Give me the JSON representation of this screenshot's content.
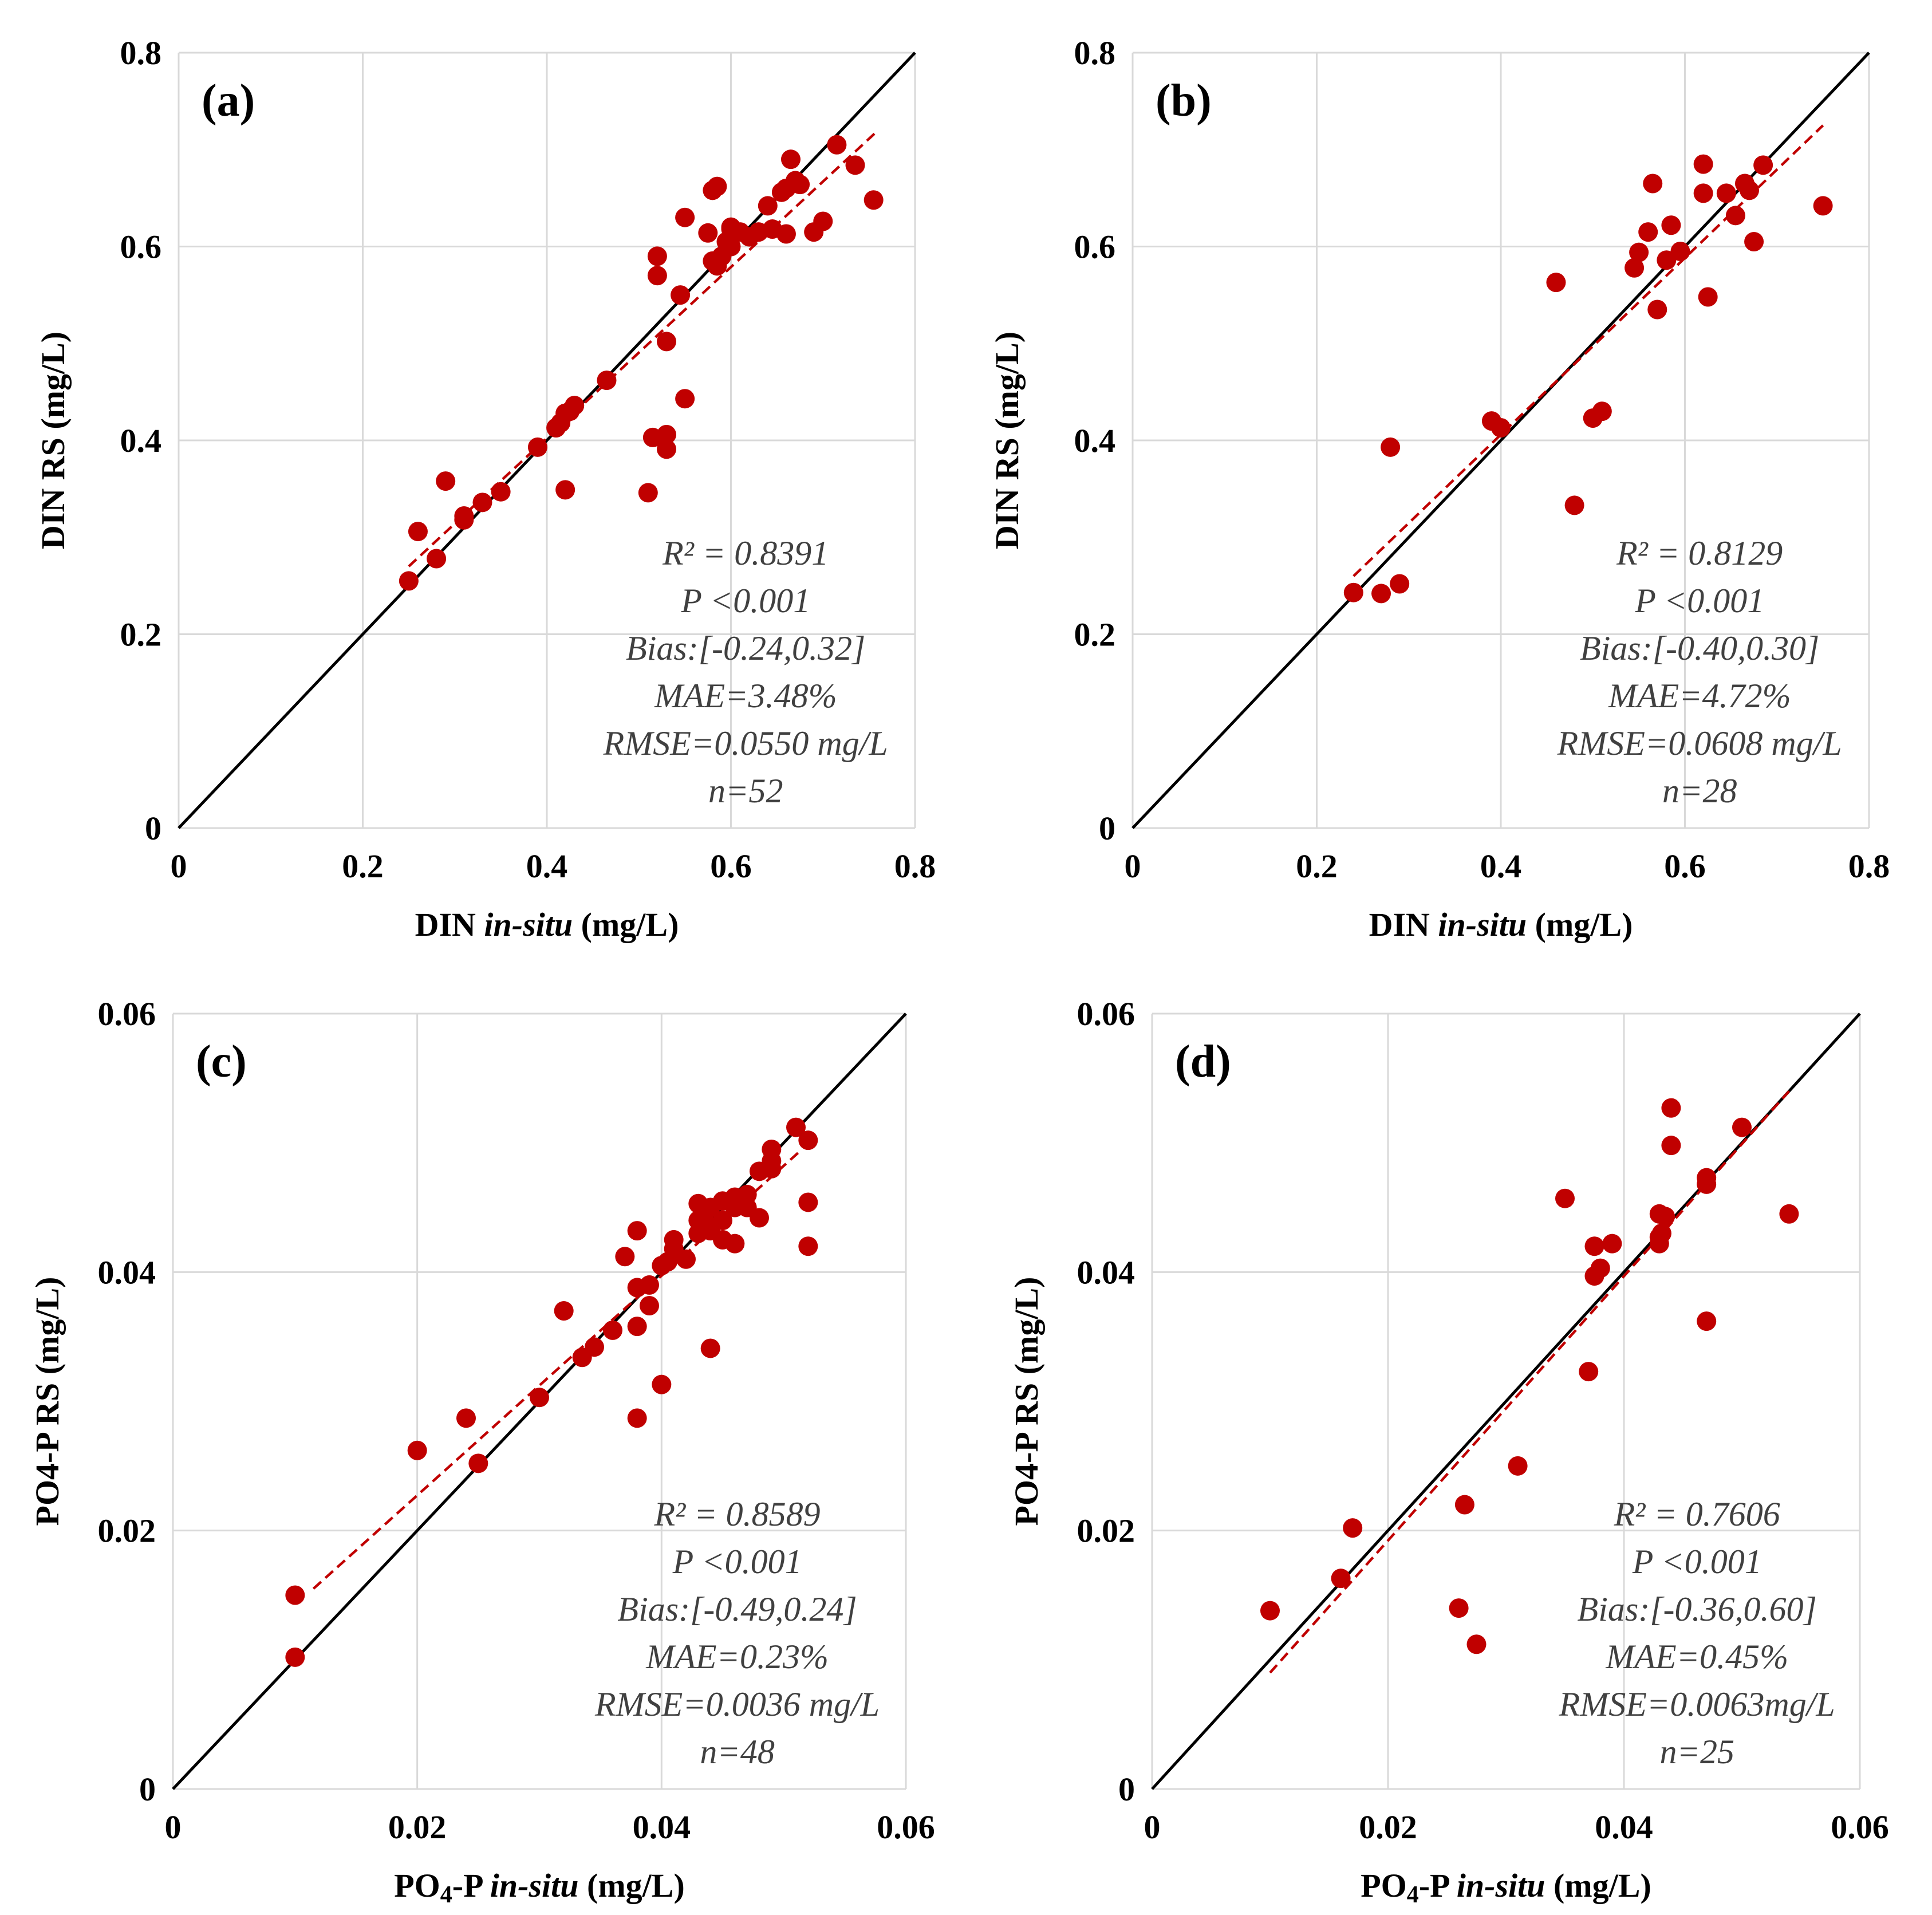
{
  "chart_data": [
    {
      "type": "scatter",
      "panel_label": "(a)",
      "xlabel": {
        "pre": "DIN ",
        "italic": "in-situ",
        "post": " (mg/L)"
      },
      "ylabel": "DIN RS (mg/L)",
      "xlim": [
        0,
        0.8
      ],
      "ylim": [
        0,
        0.8
      ],
      "xticks": [
        0,
        0.2,
        0.4,
        0.6,
        0.8
      ],
      "yticks": [
        0,
        0.2,
        0.4,
        0.6,
        0.8
      ],
      "xtick_labels": [
        "0",
        "0.2",
        "0.4",
        "0.6",
        "0.8"
      ],
      "ytick_labels": [
        "0",
        "0.2",
        "0.4",
        "0.6",
        "0.8"
      ],
      "grid": true,
      "stats": [
        "R² = 0.8391",
        "P <0.001",
        "Bias:[-0.24,0.32]",
        "MAE=3.48%",
        "RMSE=0.0550 mg/L",
        "n=52"
      ],
      "trendline": {
        "x": [
          0.25,
          0.76
        ],
        "y": [
          0.27,
          0.72
        ]
      },
      "points": [
        [
          0.25,
          0.255
        ],
        [
          0.26,
          0.306
        ],
        [
          0.28,
          0.278
        ],
        [
          0.29,
          0.358
        ],
        [
          0.31,
          0.318
        ],
        [
          0.31,
          0.322
        ],
        [
          0.33,
          0.336
        ],
        [
          0.35,
          0.347
        ],
        [
          0.39,
          0.393
        ],
        [
          0.41,
          0.413
        ],
        [
          0.415,
          0.418
        ],
        [
          0.42,
          0.428
        ],
        [
          0.42,
          0.349
        ],
        [
          0.425,
          0.43
        ],
        [
          0.43,
          0.436
        ],
        [
          0.465,
          0.462
        ],
        [
          0.51,
          0.346
        ],
        [
          0.515,
          0.403
        ],
        [
          0.52,
          0.59
        ],
        [
          0.52,
          0.57
        ],
        [
          0.53,
          0.502
        ],
        [
          0.53,
          0.406
        ],
        [
          0.53,
          0.391
        ],
        [
          0.545,
          0.55
        ],
        [
          0.55,
          0.443
        ],
        [
          0.55,
          0.63
        ],
        [
          0.575,
          0.614
        ],
        [
          0.58,
          0.658
        ],
        [
          0.58,
          0.585
        ],
        [
          0.585,
          0.662
        ],
        [
          0.585,
          0.58
        ],
        [
          0.59,
          0.59
        ],
        [
          0.595,
          0.605
        ],
        [
          0.6,
          0.618
        ],
        [
          0.61,
          0.615
        ],
        [
          0.64,
          0.642
        ],
        [
          0.645,
          0.618
        ],
        [
          0.655,
          0.656
        ],
        [
          0.66,
          0.613
        ],
        [
          0.665,
          0.69
        ],
        [
          0.67,
          0.668
        ],
        [
          0.675,
          0.664
        ],
        [
          0.69,
          0.615
        ],
        [
          0.7,
          0.626
        ],
        [
          0.715,
          0.705
        ],
        [
          0.735,
          0.684
        ],
        [
          0.755,
          0.648
        ],
        [
          0.6,
          0.62
        ],
        [
          0.62,
          0.61
        ],
        [
          0.63,
          0.615
        ],
        [
          0.6,
          0.6
        ],
        [
          0.66,
          0.66
        ]
      ]
    },
    {
      "type": "scatter",
      "panel_label": "(b)",
      "xlabel": {
        "pre": "DIN ",
        "italic": "in-situ",
        "post": " (mg/L)"
      },
      "ylabel": "DIN RS (mg/L)",
      "xlim": [
        0,
        0.8
      ],
      "ylim": [
        0,
        0.8
      ],
      "xticks": [
        0,
        0.2,
        0.4,
        0.6,
        0.8
      ],
      "yticks": [
        0,
        0.2,
        0.4,
        0.6,
        0.8
      ],
      "xtick_labels": [
        "0",
        "0.2",
        "0.4",
        "0.6",
        "0.8"
      ],
      "ytick_labels": [
        "0",
        "0.2",
        "0.4",
        "0.6",
        "0.8"
      ],
      "grid": true,
      "stats": [
        "R² = 0.8129",
        "P <0.001",
        "Bias:[-0.40,0.30]",
        "MAE=4.72%",
        "RMSE=0.0608 mg/L",
        "n=28"
      ],
      "trendline": {
        "x": [
          0.24,
          0.75
        ],
        "y": [
          0.26,
          0.725
        ]
      },
      "points": [
        [
          0.24,
          0.243
        ],
        [
          0.27,
          0.242
        ],
        [
          0.28,
          0.393
        ],
        [
          0.29,
          0.252
        ],
        [
          0.39,
          0.42
        ],
        [
          0.4,
          0.413
        ],
        [
          0.46,
          0.563
        ],
        [
          0.48,
          0.333
        ],
        [
          0.5,
          0.423
        ],
        [
          0.51,
          0.43
        ],
        [
          0.545,
          0.578
        ],
        [
          0.55,
          0.594
        ],
        [
          0.56,
          0.615
        ],
        [
          0.565,
          0.665
        ],
        [
          0.57,
          0.535
        ],
        [
          0.58,
          0.586
        ],
        [
          0.585,
          0.622
        ],
        [
          0.595,
          0.595
        ],
        [
          0.62,
          0.685
        ],
        [
          0.62,
          0.655
        ],
        [
          0.625,
          0.548
        ],
        [
          0.645,
          0.655
        ],
        [
          0.655,
          0.632
        ],
        [
          0.665,
          0.665
        ],
        [
          0.67,
          0.658
        ],
        [
          0.675,
          0.605
        ],
        [
          0.685,
          0.684
        ],
        [
          0.75,
          0.642
        ]
      ]
    },
    {
      "type": "scatter",
      "panel_label": "(c)",
      "xlabel": {
        "pre": "PO",
        "sub": "4",
        "mid": "-P ",
        "italic": "in-situ",
        "post": " (mg/L)"
      },
      "ylabel": "PO4-P RS (mg/L)",
      "xlim": [
        0,
        0.06
      ],
      "ylim": [
        0,
        0.06
      ],
      "xticks": [
        0,
        0.02,
        0.04,
        0.06
      ],
      "yticks": [
        0,
        0.02,
        0.04,
        0.06
      ],
      "xtick_labels": [
        "0",
        "0.02",
        "0.04",
        "0.06"
      ],
      "ytick_labels": [
        "0",
        "0.02",
        "0.04",
        "0.06"
      ],
      "grid": true,
      "stats": [
        "R² = 0.8589",
        "P <0.001",
        "Bias:[-0.49,0.24]",
        "MAE=0.23%",
        "RMSE=0.0036 mg/L",
        "n=48"
      ],
      "trendline": {
        "x": [
          0.0115,
          0.0515
        ],
        "y": [
          0.0155,
          0.0495
        ]
      },
      "points": [
        [
          0.01,
          0.015
        ],
        [
          0.01,
          0.0102
        ],
        [
          0.02,
          0.0262
        ],
        [
          0.024,
          0.0287
        ],
        [
          0.025,
          0.0252
        ],
        [
          0.03,
          0.0303
        ],
        [
          0.032,
          0.037
        ],
        [
          0.0335,
          0.0334
        ],
        [
          0.0345,
          0.0342
        ],
        [
          0.037,
          0.0412
        ],
        [
          0.038,
          0.0432
        ],
        [
          0.038,
          0.0388
        ],
        [
          0.038,
          0.0358
        ],
        [
          0.038,
          0.0287
        ],
        [
          0.039,
          0.039
        ],
        [
          0.039,
          0.0374
        ],
        [
          0.04,
          0.0405
        ],
        [
          0.04,
          0.0313
        ],
        [
          0.041,
          0.0418
        ],
        [
          0.041,
          0.0425
        ],
        [
          0.044,
          0.0341
        ],
        [
          0.043,
          0.0453
        ],
        [
          0.043,
          0.043
        ],
        [
          0.044,
          0.0435
        ],
        [
          0.044,
          0.045
        ],
        [
          0.045,
          0.0425
        ],
        [
          0.045,
          0.0455
        ],
        [
          0.046,
          0.0422
        ],
        [
          0.046,
          0.0458
        ],
        [
          0.047,
          0.046
        ],
        [
          0.047,
          0.045
        ],
        [
          0.048,
          0.0442
        ],
        [
          0.048,
          0.0478
        ],
        [
          0.049,
          0.0495
        ],
        [
          0.049,
          0.0486
        ],
        [
          0.049,
          0.048
        ],
        [
          0.051,
          0.0512
        ],
        [
          0.052,
          0.0502
        ],
        [
          0.052,
          0.0454
        ],
        [
          0.052,
          0.042
        ],
        [
          0.043,
          0.044
        ],
        [
          0.044,
          0.0432
        ],
        [
          0.045,
          0.044
        ],
        [
          0.042,
          0.041
        ],
        [
          0.046,
          0.045
        ],
        [
          0.0435,
          0.0445
        ],
        [
          0.0405,
          0.0408
        ],
        [
          0.036,
          0.0355
        ]
      ]
    },
    {
      "type": "scatter",
      "panel_label": "(d)",
      "xlabel": {
        "pre": "PO",
        "sub": "4",
        "mid": "-P ",
        "italic": "in-situ",
        "post": " (mg/L)"
      },
      "ylabel": "PO4-P RS (mg/L)",
      "xlim": [
        0,
        0.06
      ],
      "ylim": [
        0,
        0.06
      ],
      "xticks": [
        0,
        0.02,
        0.04,
        0.06
      ],
      "yticks": [
        0,
        0.02,
        0.04,
        0.06
      ],
      "xtick_labels": [
        "0",
        "0.02",
        "0.04",
        "0.06"
      ],
      "ytick_labels": [
        "0",
        "0.02",
        "0.04",
        "0.06"
      ],
      "grid": true,
      "stats": [
        "R² = 0.7606",
        "P <0.001",
        "Bias:[-0.36,0.60]",
        "MAE=0.45%",
        "RMSE=0.0063mg/L",
        "n=25"
      ],
      "trendline": {
        "x": [
          0.01,
          0.054
        ],
        "y": [
          0.009,
          0.054
        ]
      },
      "points": [
        [
          0.01,
          0.0138
        ],
        [
          0.016,
          0.0163
        ],
        [
          0.017,
          0.0202
        ],
        [
          0.026,
          0.014
        ],
        [
          0.0265,
          0.022
        ],
        [
          0.0275,
          0.0112
        ],
        [
          0.031,
          0.025
        ],
        [
          0.035,
          0.0457
        ],
        [
          0.037,
          0.0323
        ],
        [
          0.0375,
          0.042
        ],
        [
          0.0375,
          0.0397
        ],
        [
          0.038,
          0.0403
        ],
        [
          0.039,
          0.0422
        ],
        [
          0.043,
          0.0422
        ],
        [
          0.043,
          0.0427
        ],
        [
          0.043,
          0.0445
        ],
        [
          0.044,
          0.0527
        ],
        [
          0.044,
          0.0498
        ],
        [
          0.047,
          0.0473
        ],
        [
          0.047,
          0.0468
        ],
        [
          0.047,
          0.0362
        ],
        [
          0.05,
          0.0512
        ],
        [
          0.054,
          0.0445
        ],
        [
          0.0435,
          0.0443
        ],
        [
          0.0432,
          0.043
        ]
      ]
    }
  ]
}
